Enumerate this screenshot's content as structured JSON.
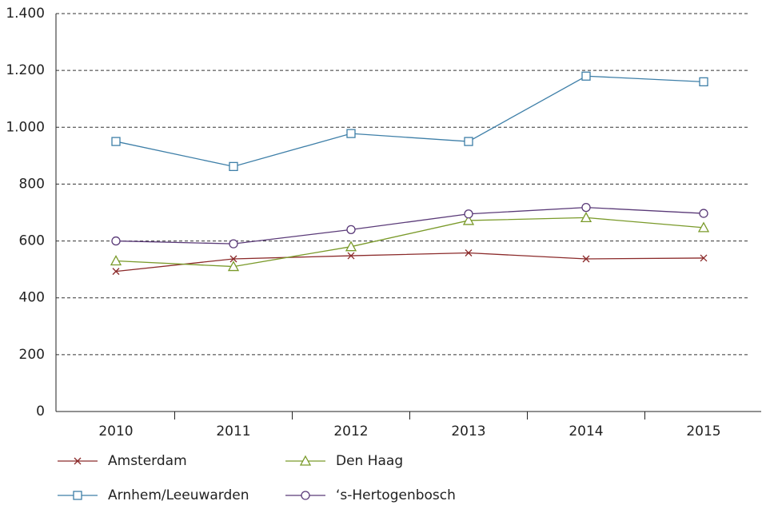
{
  "chart_data": {
    "type": "line",
    "categories": [
      "2010",
      "2011",
      "2012",
      "2013",
      "2014",
      "2015"
    ],
    "series": [
      {
        "name": "Amsterdam",
        "color": "#8b2a2a",
        "marker": "x",
        "values": [
          493,
          537,
          548,
          558,
          537,
          540
        ]
      },
      {
        "name": "Den Haag",
        "color": "#7a9a2a",
        "marker": "triangle",
        "values": [
          530,
          510,
          580,
          672,
          682,
          647
        ]
      },
      {
        "name": "Arnhem/Leeuwarden",
        "color": "#3e7fa8",
        "marker": "square",
        "values": [
          950,
          862,
          978,
          950,
          1180,
          1160
        ]
      },
      {
        "name": "‘s-Hertogenbosch",
        "color": "#5a3a78",
        "marker": "circle",
        "values": [
          600,
          590,
          640,
          695,
          718,
          697
        ]
      }
    ],
    "ylim": [
      0,
      1400
    ],
    "yticks": [
      0,
      200,
      400,
      600,
      800,
      {
        "value": 1000,
        "label": "1.000"
      },
      {
        "value": 1200,
        "label": "1.200"
      },
      {
        "value": 1400,
        "label": "1.400"
      }
    ],
    "grid": true,
    "legend": "bottom"
  }
}
